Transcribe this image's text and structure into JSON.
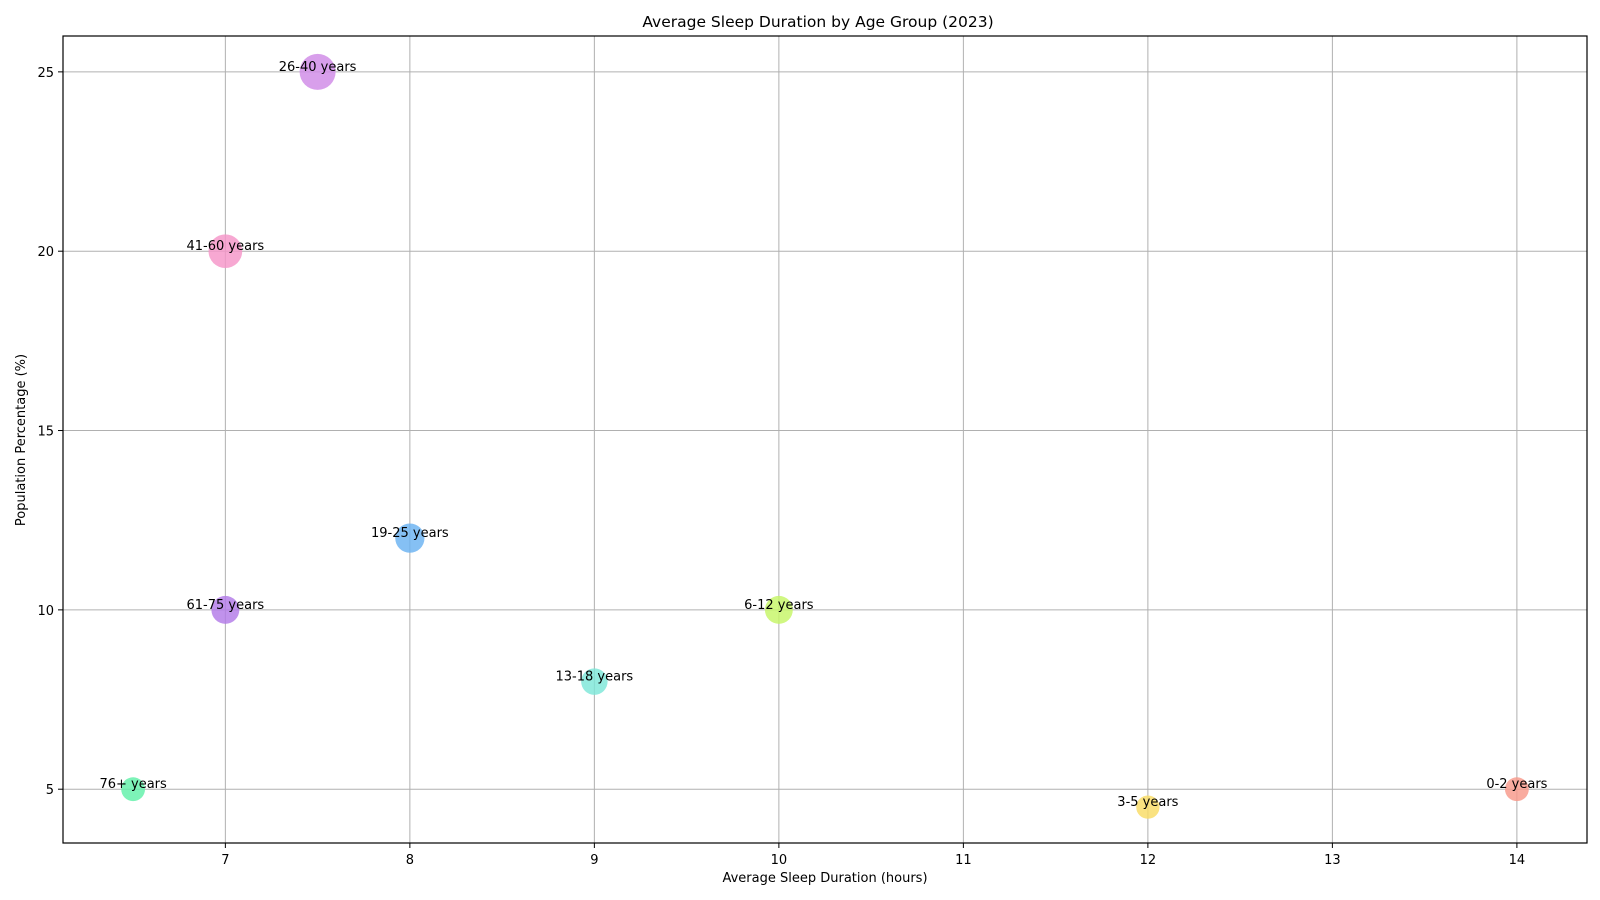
{
  "chart_data": {
    "type": "scatter",
    "title": "Average Sleep Duration by Age Group (2023)",
    "xlabel": "Average Sleep Duration (hours)",
    "ylabel": "Population Percentage (%)",
    "xlim": [
      6.12,
      14.38
    ],
    "ylim": [
      3.5,
      26.0
    ],
    "xticks": [
      7,
      8,
      9,
      10,
      11,
      12,
      13,
      14
    ],
    "yticks": [
      5,
      10,
      15,
      20,
      25
    ],
    "grid": true,
    "points": [
      {
        "label": "0-2 years",
        "x": 14,
        "y": 5,
        "color": "#f8998a"
      },
      {
        "label": "3-5 years",
        "x": 12,
        "y": 4.5,
        "color": "#f9dc64"
      },
      {
        "label": "6-12 years",
        "x": 10,
        "y": 10,
        "color": "#c6f567"
      },
      {
        "label": "13-18 years",
        "x": 9,
        "y": 8,
        "color": "#7de6d8"
      },
      {
        "label": "19-25 years",
        "x": 8,
        "y": 12,
        "color": "#6ab2f2"
      },
      {
        "label": "26-40 years",
        "x": 7.5,
        "y": 25,
        "color": "#cf8ae6"
      },
      {
        "label": "41-60 years",
        "x": 7,
        "y": 20,
        "color": "#f595c8"
      },
      {
        "label": "61-75 years",
        "x": 7,
        "y": 10,
        "color": "#b27ae8"
      },
      {
        "label": "76+ years",
        "x": 6.5,
        "y": 5,
        "color": "#60f0a8"
      }
    ]
  }
}
